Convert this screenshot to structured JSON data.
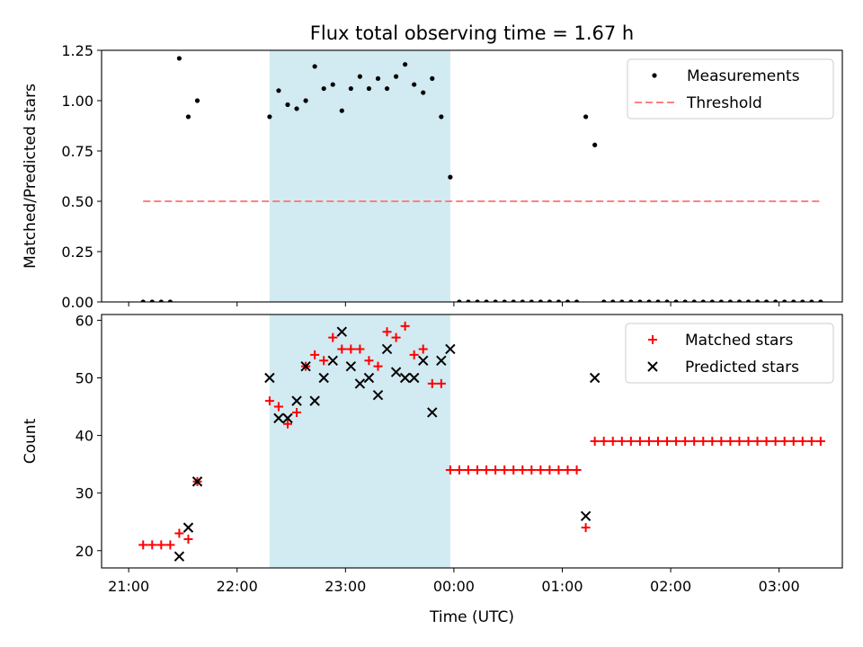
{
  "chart_data": [
    {
      "type": "scatter",
      "title": "Flux total observing time = 1.67 h",
      "xlabel": "",
      "ylabel": "Matched/Predicted stars",
      "xlim_minutes": [
        1245,
        1655
      ],
      "ylim": [
        0,
        1.25
      ],
      "yticks": [
        0,
        0.25,
        0.5,
        0.75,
        1.0,
        1.25
      ],
      "ytick_labels": [
        "0.00",
        "0.25",
        "0.50",
        "0.75",
        "1.00",
        "1.25"
      ],
      "shaded_span": [
        "22:18",
        "23:58"
      ],
      "legend": {
        "position": "top-right",
        "entries": [
          "Measurements",
          "Threshold"
        ]
      },
      "threshold": {
        "name": "Threshold",
        "value": 0.5,
        "x_start": "21:08",
        "x_end": "03:24",
        "color": "#ff8080"
      },
      "series": [
        {
          "name": "Measurements",
          "color": "#000000",
          "x": [
            "21:08",
            "21:13",
            "21:18",
            "21:23",
            "21:28",
            "21:33",
            "21:38",
            "22:18",
            "22:23",
            "22:28",
            "22:33",
            "22:38",
            "22:43",
            "22:48",
            "22:53",
            "22:58",
            "23:03",
            "23:08",
            "23:13",
            "23:18",
            "23:23",
            "23:28",
            "23:33",
            "23:38",
            "23:43",
            "23:48",
            "23:53",
            "23:58",
            "00:03",
            "00:08",
            "00:13",
            "00:18",
            "00:23",
            "00:28",
            "00:33",
            "00:38",
            "00:43",
            "00:48",
            "00:53",
            "00:58",
            "01:03",
            "01:08",
            "01:13",
            "01:18",
            "01:23",
            "01:28",
            "01:33",
            "01:38",
            "01:43",
            "01:48",
            "01:53",
            "01:58",
            "02:03",
            "02:08",
            "02:13",
            "02:18",
            "02:23",
            "02:28",
            "02:33",
            "02:38",
            "02:43",
            "02:48",
            "02:53",
            "02:58",
            "03:03",
            "03:08",
            "03:13",
            "03:18",
            "03:23"
          ],
          "y": [
            0.0,
            0.0,
            0.0,
            0.0,
            1.21,
            0.92,
            1.0,
            0.92,
            1.05,
            0.98,
            0.96,
            1.0,
            1.17,
            1.06,
            1.08,
            0.95,
            1.06,
            1.12,
            1.06,
            1.11,
            1.06,
            1.12,
            1.18,
            1.08,
            1.04,
            1.11,
            0.92,
            0.62,
            0.0,
            0.0,
            0.0,
            0.0,
            0.0,
            0.0,
            0.0,
            0.0,
            0.0,
            0.0,
            0.0,
            0.0,
            0.0,
            0.0,
            0.92,
            0.78,
            0.0,
            0.0,
            0.0,
            0.0,
            0.0,
            0.0,
            0.0,
            0.0,
            0.0,
            0.0,
            0.0,
            0.0,
            0.0,
            0.0,
            0.0,
            0.0,
            0.0,
            0.0,
            0.0,
            0.0,
            0.0,
            0.0,
            0.0,
            0.0,
            0.0
          ]
        }
      ]
    },
    {
      "type": "scatter",
      "title": "",
      "xlabel": "Time (UTC)",
      "ylabel": "Count",
      "xlim_minutes": [
        1245,
        1655
      ],
      "ylim": [
        17,
        61
      ],
      "yticks": [
        20,
        30,
        40,
        50,
        60
      ],
      "ytick_labels": [
        "20",
        "30",
        "40",
        "50",
        "60"
      ],
      "xticks": [
        "21:00",
        "22:00",
        "23:00",
        "00:00",
        "01:00",
        "02:00",
        "03:00"
      ],
      "shaded_span": [
        "22:18",
        "23:58"
      ],
      "legend": {
        "position": "top-right",
        "entries": [
          "Matched stars",
          "Predicted stars"
        ]
      },
      "series": [
        {
          "name": "Matched stars",
          "marker": "plus",
          "color": "#ff0000",
          "x": [
            "21:08",
            "21:13",
            "21:18",
            "21:23",
            "21:28",
            "21:33",
            "21:38",
            "22:18",
            "22:23",
            "22:28",
            "22:33",
            "22:38",
            "22:43",
            "22:48",
            "22:53",
            "22:58",
            "23:03",
            "23:08",
            "23:13",
            "23:18",
            "23:23",
            "23:28",
            "23:33",
            "23:38",
            "23:43",
            "23:48",
            "23:53",
            "23:58",
            "00:03",
            "00:08",
            "00:13",
            "00:18",
            "00:23",
            "00:28",
            "00:33",
            "00:38",
            "00:43",
            "00:48",
            "00:53",
            "00:58",
            "01:03",
            "01:08",
            "01:13",
            "01:18",
            "01:23",
            "01:28",
            "01:33",
            "01:38",
            "01:43",
            "01:48",
            "01:53",
            "01:58",
            "02:03",
            "02:08",
            "02:13",
            "02:18",
            "02:23",
            "02:28",
            "02:33",
            "02:38",
            "02:43",
            "02:48",
            "02:53",
            "02:58",
            "03:03",
            "03:08",
            "03:13",
            "03:18",
            "03:23"
          ],
          "y": [
            21,
            21,
            21,
            21,
            23,
            22,
            32,
            46,
            45,
            42,
            44,
            52,
            54,
            53,
            57,
            55,
            55,
            55,
            53,
            52,
            58,
            57,
            59,
            54,
            55,
            49,
            49,
            34,
            34,
            34,
            34,
            34,
            34,
            34,
            34,
            34,
            34,
            34,
            34,
            34,
            34,
            34,
            24,
            39,
            39,
            39,
            39,
            39,
            39,
            39,
            39,
            39,
            39,
            39,
            39,
            39,
            39,
            39,
            39,
            39,
            39,
            39,
            39,
            39,
            39,
            39,
            39,
            39,
            39
          ]
        },
        {
          "name": "Predicted stars",
          "marker": "x",
          "color": "#000000",
          "x": [
            "21:28",
            "21:33",
            "21:38",
            "22:18",
            "22:23",
            "22:28",
            "22:33",
            "22:38",
            "22:43",
            "22:48",
            "22:53",
            "22:58",
            "23:03",
            "23:08",
            "23:13",
            "23:18",
            "23:23",
            "23:28",
            "23:33",
            "23:38",
            "23:43",
            "23:48",
            "23:53",
            "23:58",
            "01:13",
            "01:18"
          ],
          "y": [
            19,
            24,
            32,
            50,
            43,
            43,
            46,
            52,
            46,
            50,
            53,
            58,
            52,
            49,
            50,
            47,
            55,
            51,
            50,
            50,
            53,
            44,
            53,
            55,
            26,
            50
          ]
        }
      ]
    }
  ]
}
